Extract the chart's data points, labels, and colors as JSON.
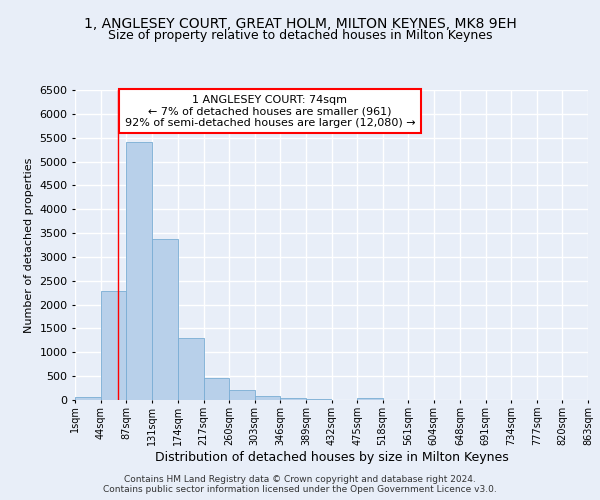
{
  "title_line1": "1, ANGLESEY COURT, GREAT HOLM, MILTON KEYNES, MK8 9EH",
  "title_line2": "Size of property relative to detached houses in Milton Keynes",
  "xlabel": "Distribution of detached houses by size in Milton Keynes",
  "ylabel": "Number of detached properties",
  "footer_line1": "Contains HM Land Registry data © Crown copyright and database right 2024.",
  "footer_line2": "Contains public sector information licensed under the Open Government Licence v3.0.",
  "annotation_line1": "1 ANGLESEY COURT: 74sqm",
  "annotation_line2": "← 7% of detached houses are smaller (961)",
  "annotation_line3": "92% of semi-detached houses are larger (12,080) →",
  "bar_color": "#b8d0ea",
  "bar_edge_color": "#7aadd4",
  "vline_x": 74,
  "vline_color": "red",
  "bin_edges": [
    1,
    44,
    87,
    131,
    174,
    217,
    260,
    303,
    346,
    389,
    432,
    475,
    518,
    561,
    604,
    648,
    691,
    734,
    777,
    820,
    863
  ],
  "bar_heights": [
    70,
    2280,
    5420,
    3380,
    1310,
    470,
    210,
    90,
    50,
    20,
    10,
    50,
    0,
    0,
    0,
    0,
    0,
    0,
    0,
    0
  ],
  "ylim": [
    0,
    6500
  ],
  "yticks": [
    0,
    500,
    1000,
    1500,
    2000,
    2500,
    3000,
    3500,
    4000,
    4500,
    5000,
    5500,
    6000,
    6500
  ],
  "bg_color": "#e8eef8",
  "grid_color": "white",
  "annotation_box_color": "white",
  "annotation_box_edge": "red",
  "title1_fontsize": 10,
  "title2_fontsize": 9,
  "ylabel_fontsize": 8,
  "xlabel_fontsize": 9,
  "ytick_fontsize": 8,
  "xtick_fontsize": 7,
  "footer_fontsize": 6.5
}
